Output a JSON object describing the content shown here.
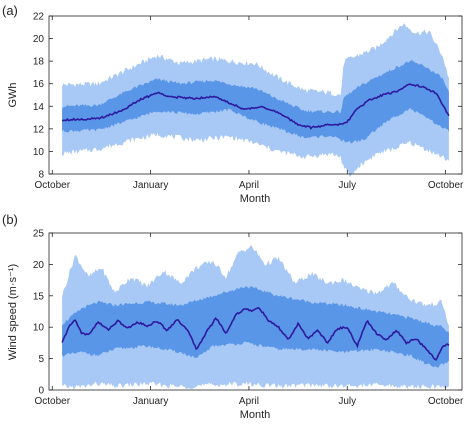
{
  "chart_data": [
    {
      "type": "area",
      "panel_label": "(a)",
      "xlabel": "Month",
      "ylabel": "GWh",
      "ylim": [
        8,
        22
      ],
      "yticks": [
        8,
        10,
        12,
        14,
        16,
        18,
        20,
        22
      ],
      "xlim": [
        0,
        12.6
      ],
      "xticks": [
        {
          "label": "October",
          "x": 0.1
        },
        {
          "label": "January",
          "x": 3.1
        },
        {
          "label": "April",
          "x": 6.1
        },
        {
          "label": "July",
          "x": 9.1
        },
        {
          "label": "October",
          "x": 12.1
        }
      ],
      "series_x_range": [
        0.4,
        12.2
      ],
      "bands": [
        {
          "color": "#a8c8f5",
          "lower": [
            [
              0.4,
              9.8
            ],
            [
              1.5,
              10.2
            ],
            [
              2.5,
              11.0
            ],
            [
              3.3,
              11.5
            ],
            [
              4.5,
              11.0
            ],
            [
              5.5,
              11.3
            ],
            [
              6.2,
              10.8
            ],
            [
              7.0,
              10.0
            ],
            [
              7.8,
              9.5
            ],
            [
              8.6,
              9.8
            ],
            [
              8.9,
              9.5
            ],
            [
              9.0,
              8.5
            ],
            [
              9.2,
              7.8
            ],
            [
              9.5,
              8.8
            ],
            [
              10.0,
              9.8
            ],
            [
              10.5,
              10.2
            ],
            [
              11.0,
              10.8
            ],
            [
              11.5,
              10.2
            ],
            [
              12.2,
              9.2
            ]
          ],
          "upper": [
            [
              0.4,
              15.9
            ],
            [
              1.5,
              16.0
            ],
            [
              2.5,
              17.4
            ],
            [
              3.3,
              18.5
            ],
            [
              4.0,
              17.8
            ],
            [
              5.0,
              18.2
            ],
            [
              5.8,
              17.9
            ],
            [
              6.3,
              17.8
            ],
            [
              7.0,
              16.5
            ],
            [
              7.8,
              15.4
            ],
            [
              8.6,
              15.2
            ],
            [
              8.9,
              15.0
            ],
            [
              9.0,
              18.0
            ],
            [
              9.5,
              18.6
            ],
            [
              10.0,
              19.2
            ],
            [
              10.5,
              20.5
            ],
            [
              10.8,
              21.3
            ],
            [
              11.2,
              20.5
            ],
            [
              11.6,
              20.6
            ],
            [
              12.0,
              18.5
            ],
            [
              12.2,
              16.5
            ]
          ]
        },
        {
          "color": "#5a96e8",
          "lower": [
            [
              0.4,
              11.8
            ],
            [
              1.5,
              11.9
            ],
            [
              2.5,
              12.8
            ],
            [
              3.3,
              13.6
            ],
            [
              4.5,
              13.3
            ],
            [
              5.5,
              13.7
            ],
            [
              6.2,
              12.8
            ],
            [
              7.0,
              12.0
            ],
            [
              7.8,
              11.2
            ],
            [
              8.6,
              11.4
            ],
            [
              8.9,
              11.0
            ],
            [
              9.2,
              10.8
            ],
            [
              9.6,
              11.0
            ],
            [
              10.0,
              12.0
            ],
            [
              10.5,
              13.0
            ],
            [
              11.0,
              13.8
            ],
            [
              11.5,
              13.0
            ],
            [
              12.2,
              11.8
            ]
          ],
          "upper": [
            [
              0.4,
              14.0
            ],
            [
              1.5,
              14.1
            ],
            [
              2.5,
              15.5
            ],
            [
              3.3,
              16.4
            ],
            [
              4.0,
              16.0
            ],
            [
              5.0,
              16.3
            ],
            [
              5.8,
              15.8
            ],
            [
              6.3,
              15.6
            ],
            [
              7.0,
              14.6
            ],
            [
              7.8,
              13.6
            ],
            [
              8.6,
              13.5
            ],
            [
              8.9,
              13.5
            ],
            [
              9.0,
              14.8
            ],
            [
              9.5,
              15.8
            ],
            [
              10.0,
              16.6
            ],
            [
              10.5,
              17.3
            ],
            [
              11.0,
              18.0
            ],
            [
              11.5,
              17.5
            ],
            [
              12.0,
              16.5
            ],
            [
              12.2,
              15.2
            ]
          ]
        }
      ],
      "line": {
        "name": "",
        "color": "#2d1a9e",
        "points": [
          [
            0.4,
            12.8
          ],
          [
            1.5,
            12.9
          ],
          [
            2.2,
            13.6
          ],
          [
            2.8,
            14.6
          ],
          [
            3.3,
            15.2
          ],
          [
            3.8,
            14.8
          ],
          [
            4.5,
            14.7
          ],
          [
            5.0,
            14.9
          ],
          [
            5.5,
            14.3
          ],
          [
            6.0,
            13.7
          ],
          [
            6.5,
            14.0
          ],
          [
            7.0,
            13.4
          ],
          [
            7.6,
            12.4
          ],
          [
            8.0,
            12.1
          ],
          [
            8.6,
            12.4
          ],
          [
            8.9,
            12.4
          ],
          [
            9.1,
            12.6
          ],
          [
            9.4,
            13.8
          ],
          [
            9.8,
            14.6
          ],
          [
            10.2,
            15.0
          ],
          [
            10.6,
            15.3
          ],
          [
            11.0,
            16.0
          ],
          [
            11.4,
            15.7
          ],
          [
            11.8,
            15.2
          ],
          [
            12.0,
            14.2
          ],
          [
            12.2,
            13.1
          ]
        ]
      }
    },
    {
      "type": "area",
      "panel_label": "(b)",
      "xlabel": "Month",
      "ylabel": "Wind speed (m·s⁻¹)",
      "ylim": [
        0,
        25
      ],
      "yticks": [
        0,
        5,
        10,
        15,
        20,
        25
      ],
      "xlim": [
        0,
        12.6
      ],
      "xticks": [
        {
          "label": "October",
          "x": 0.1
        },
        {
          "label": "January",
          "x": 3.1
        },
        {
          "label": "April",
          "x": 6.1
        },
        {
          "label": "July",
          "x": 9.1
        },
        {
          "label": "October",
          "x": 12.1
        }
      ],
      "series_x_range": [
        0.4,
        12.2
      ],
      "bands": [
        {
          "color": "#a8c8f5",
          "lower": [
            [
              0.4,
              0.5
            ],
            [
              1.0,
              0.5
            ],
            [
              1.5,
              1.0
            ],
            [
              2.0,
              0.6
            ],
            [
              3.0,
              1.0
            ],
            [
              4.0,
              0.5
            ],
            [
              5.0,
              0.8
            ],
            [
              6.0,
              1.0
            ],
            [
              7.0,
              0.6
            ],
            [
              8.0,
              0.8
            ],
            [
              9.0,
              0.6
            ],
            [
              10.0,
              0.8
            ],
            [
              11.0,
              0.5
            ],
            [
              12.2,
              0.5
            ]
          ],
          "upper": [
            [
              0.4,
              15.0
            ],
            [
              0.8,
              21.5
            ],
            [
              1.2,
              18.0
            ],
            [
              1.6,
              19.5
            ],
            [
              2.0,
              15.5
            ],
            [
              2.5,
              18.0
            ],
            [
              3.0,
              16.5
            ],
            [
              3.5,
              19.0
            ],
            [
              4.0,
              17.0
            ],
            [
              4.5,
              19.5
            ],
            [
              5.0,
              20.5
            ],
            [
              5.4,
              18.0
            ],
            [
              5.8,
              22.0
            ],
            [
              6.2,
              22.8
            ],
            [
              6.6,
              20.0
            ],
            [
              7.0,
              21.0
            ],
            [
              7.5,
              17.0
            ],
            [
              8.0,
              18.5
            ],
            [
              8.5,
              17.0
            ],
            [
              9.0,
              17.5
            ],
            [
              9.5,
              16.0
            ],
            [
              10.0,
              15.5
            ],
            [
              10.5,
              17.0
            ],
            [
              11.0,
              14.5
            ],
            [
              11.5,
              13.5
            ],
            [
              12.0,
              14.0
            ],
            [
              12.2,
              10.0
            ]
          ]
        },
        {
          "color": "#5a96e8",
          "lower": [
            [
              0.4,
              5.5
            ],
            [
              1.0,
              6.0
            ],
            [
              1.5,
              5.5
            ],
            [
              2.0,
              6.5
            ],
            [
              3.0,
              7.0
            ],
            [
              4.0,
              6.0
            ],
            [
              4.5,
              5.0
            ],
            [
              5.0,
              7.0
            ],
            [
              6.0,
              7.5
            ],
            [
              7.0,
              6.5
            ],
            [
              8.0,
              6.5
            ],
            [
              9.0,
              6.0
            ],
            [
              10.0,
              6.5
            ],
            [
              11.0,
              5.5
            ],
            [
              11.8,
              3.5
            ],
            [
              12.2,
              4.5
            ]
          ],
          "upper": [
            [
              0.4,
              10.5
            ],
            [
              1.0,
              13.0
            ],
            [
              1.5,
              14.0
            ],
            [
              2.0,
              13.5
            ],
            [
              3.0,
              14.0
            ],
            [
              4.0,
              13.5
            ],
            [
              5.0,
              15.0
            ],
            [
              6.0,
              16.5
            ],
            [
              6.4,
              16.0
            ],
            [
              7.0,
              15.0
            ],
            [
              8.0,
              14.0
            ],
            [
              9.0,
              13.5
            ],
            [
              10.0,
              12.5
            ],
            [
              11.0,
              11.5
            ],
            [
              12.0,
              10.0
            ],
            [
              12.2,
              9.0
            ]
          ]
        }
      ],
      "line": {
        "name": "",
        "color": "#2d1a9e",
        "points": [
          [
            0.4,
            7.5
          ],
          [
            0.6,
            10.0
          ],
          [
            0.8,
            11.2
          ],
          [
            1.0,
            9.0
          ],
          [
            1.2,
            8.8
          ],
          [
            1.5,
            10.8
          ],
          [
            1.8,
            9.6
          ],
          [
            2.1,
            11.0
          ],
          [
            2.4,
            9.8
          ],
          [
            2.7,
            10.8
          ],
          [
            3.0,
            10.2
          ],
          [
            3.3,
            11.0
          ],
          [
            3.6,
            9.5
          ],
          [
            3.9,
            11.2
          ],
          [
            4.2,
            9.8
          ],
          [
            4.5,
            6.5
          ],
          [
            4.8,
            9.2
          ],
          [
            5.1,
            11.5
          ],
          [
            5.4,
            9.0
          ],
          [
            5.7,
            12.0
          ],
          [
            6.0,
            13.0
          ],
          [
            6.2,
            12.5
          ],
          [
            6.4,
            13.2
          ],
          [
            6.7,
            11.0
          ],
          [
            7.0,
            10.0
          ],
          [
            7.3,
            8.0
          ],
          [
            7.6,
            10.5
          ],
          [
            7.9,
            8.2
          ],
          [
            8.2,
            9.5
          ],
          [
            8.5,
            7.5
          ],
          [
            8.8,
            9.8
          ],
          [
            9.1,
            10.0
          ],
          [
            9.4,
            7.0
          ],
          [
            9.7,
            11.0
          ],
          [
            10.0,
            9.0
          ],
          [
            10.3,
            8.0
          ],
          [
            10.6,
            9.5
          ],
          [
            10.9,
            7.5
          ],
          [
            11.2,
            8.2
          ],
          [
            11.5,
            6.5
          ],
          [
            11.8,
            4.8
          ],
          [
            12.0,
            7.0
          ],
          [
            12.2,
            7.2
          ]
        ]
      }
    }
  ]
}
